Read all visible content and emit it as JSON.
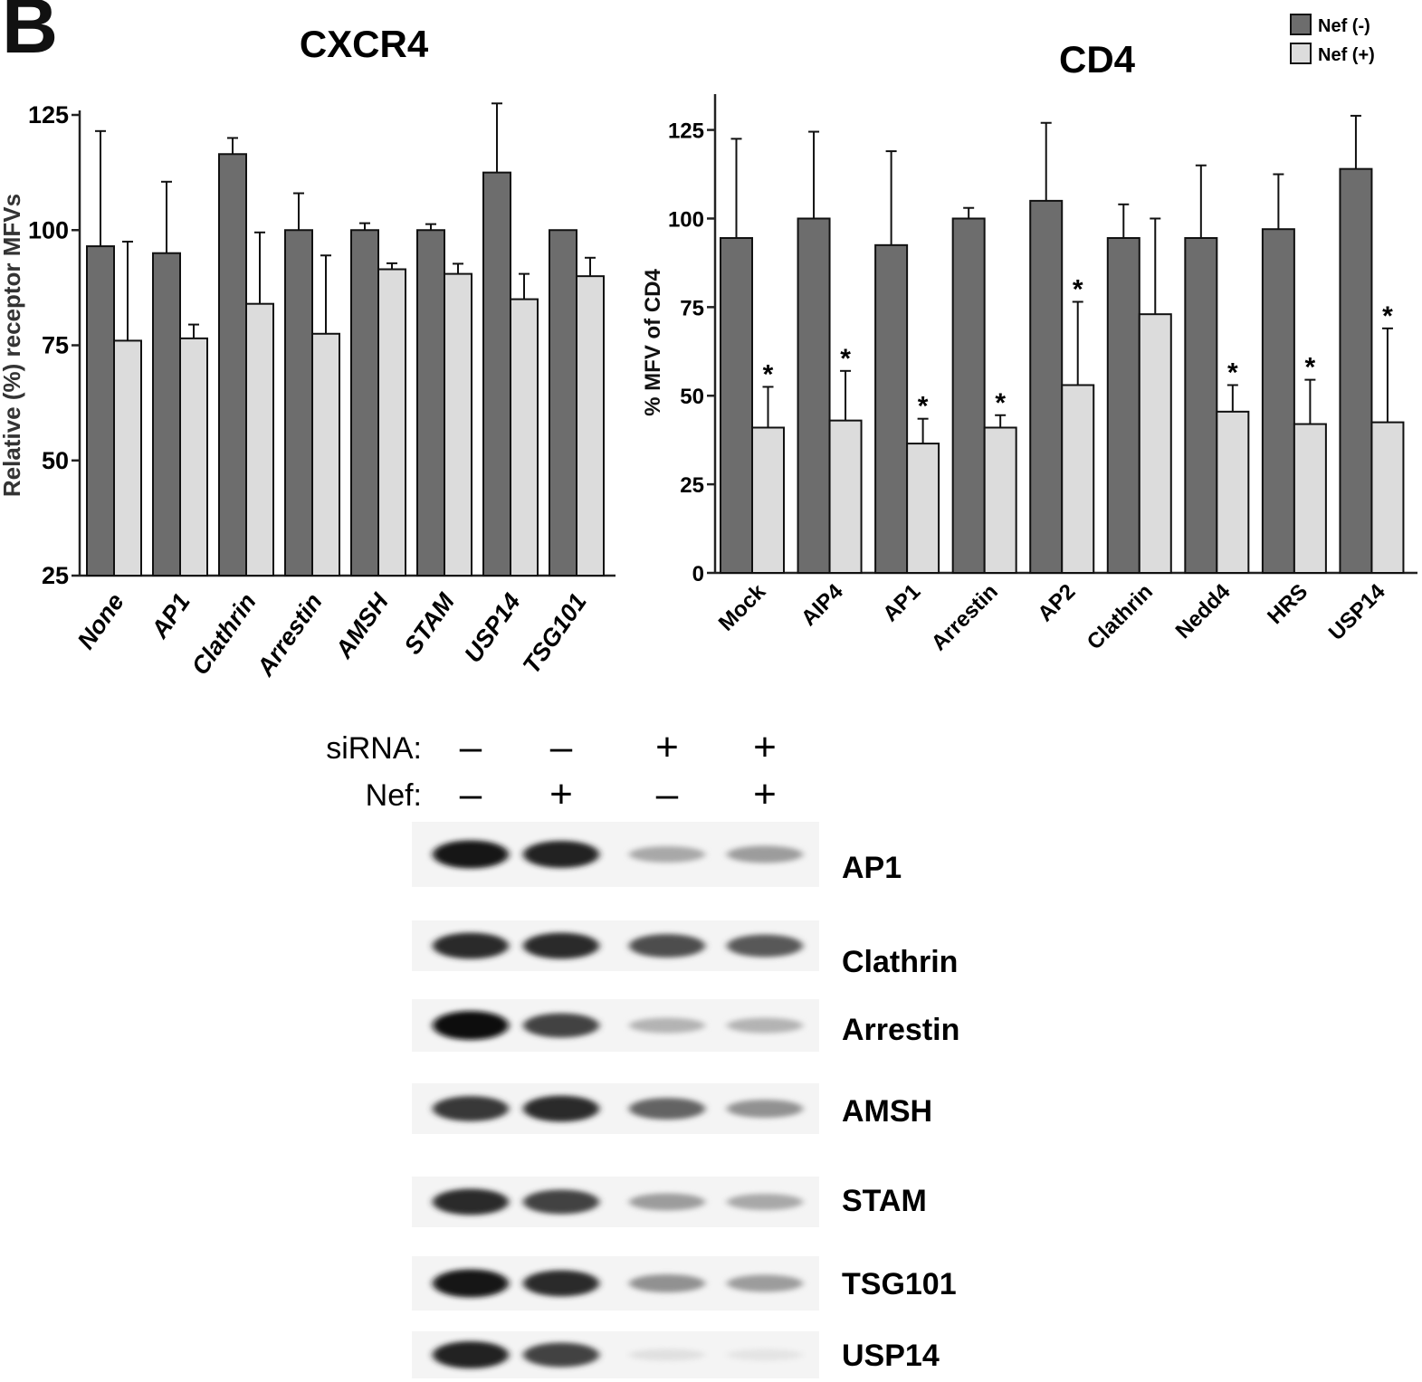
{
  "panel_label": "B",
  "legend": {
    "items": [
      {
        "label": "Nef (-)",
        "color": "#6d6d6d"
      },
      {
        "label": "Nef (+)",
        "color": "#dcdcdc"
      }
    ]
  },
  "chart_data": [
    {
      "type": "bar",
      "title": "CXCR4",
      "ylabel": "Relative (%) receptor MFVs",
      "xlabel": "",
      "ylim": [
        25,
        125
      ],
      "yticks": [
        25,
        50,
        75,
        100,
        125
      ],
      "categories": [
        "None",
        "AP1",
        "Clathrin",
        "Arrestin",
        "AMSH",
        "STAM",
        "USP14",
        "TSG101"
      ],
      "series": [
        {
          "name": "Nef (-)",
          "color": "#6d6d6d",
          "values": [
            96.5,
            95,
            116.5,
            100,
            100,
            100,
            112.5,
            100
          ],
          "errors": [
            25,
            15.5,
            3.5,
            8,
            1.5,
            1.3,
            15,
            0
          ]
        },
        {
          "name": "Nef (+)",
          "color": "#dcdcdc",
          "values": [
            76,
            76.5,
            84,
            77.5,
            91.5,
            90.5,
            85,
            90
          ],
          "errors": [
            21.5,
            3,
            15.5,
            17,
            1.3,
            2.2,
            5.5,
            4
          ]
        }
      ],
      "annotations": [],
      "grid": false
    },
    {
      "type": "bar",
      "title": "CD4",
      "ylabel": "% MFV of CD4",
      "xlabel": "",
      "ylim": [
        0,
        130
      ],
      "yticks": [
        0,
        25,
        50,
        75,
        100,
        125
      ],
      "categories": [
        "Mock",
        "AIP4",
        "AP1",
        "Arrestin",
        "AP2",
        "Clathrin",
        "Nedd4",
        "HRS",
        "USP14"
      ],
      "series": [
        {
          "name": "Nef (-)",
          "color": "#6d6d6d",
          "values": [
            94.5,
            100,
            92.5,
            100,
            105,
            94.5,
            94.5,
            97,
            114
          ],
          "errors": [
            28,
            24.5,
            26.5,
            3,
            22,
            9.5,
            20.5,
            15.5,
            15
          ]
        },
        {
          "name": "Nef (+)",
          "color": "#dcdcdc",
          "values": [
            41,
            43,
            36.5,
            41,
            53,
            73,
            45.5,
            42,
            42.5
          ],
          "errors": [
            11.5,
            14,
            7,
            3.5,
            23.5,
            27,
            7.5,
            12.5,
            26.5
          ]
        }
      ],
      "significance": {
        "marker": "*",
        "categories": [
          "Mock",
          "AIP4",
          "AP1",
          "Arrestin",
          "AP2",
          "Nedd4",
          "HRS",
          "USP14"
        ]
      },
      "grid": false
    }
  ],
  "blot": {
    "conditions": [
      {
        "label": "siRNA:",
        "lanes": [
          "–",
          "–",
          "+",
          "+"
        ]
      },
      {
        "label": "Nef:",
        "lanes": [
          "–",
          "+",
          "–",
          "+"
        ]
      }
    ],
    "rows": [
      {
        "label": "AP1",
        "intensities": [
          0.95,
          0.9,
          0.3,
          0.35
        ]
      },
      {
        "label": "Clathrin",
        "intensities": [
          0.85,
          0.85,
          0.7,
          0.65
        ]
      },
      {
        "label": "Arrestin",
        "intensities": [
          1.0,
          0.75,
          0.25,
          0.25
        ]
      },
      {
        "label": "AMSH",
        "intensities": [
          0.8,
          0.85,
          0.6,
          0.4
        ]
      },
      {
        "label": "STAM",
        "intensities": [
          0.85,
          0.75,
          0.35,
          0.3
        ]
      },
      {
        "label": "TSG101",
        "intensities": [
          0.95,
          0.85,
          0.4,
          0.35
        ]
      },
      {
        "label": "USP14",
        "intensities": [
          0.9,
          0.75,
          0.05,
          0.03
        ]
      }
    ]
  }
}
